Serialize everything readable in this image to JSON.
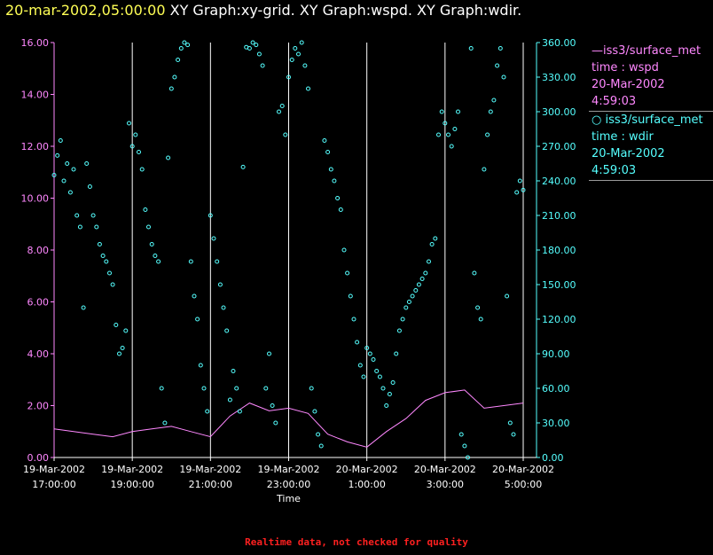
{
  "header": {
    "timestamp": "20-mar-2002,05:00:00",
    "graphs": "XY Graph:xy-grid.  XY Graph:wspd.  XY Graph:wdir."
  },
  "legend": {
    "wspd": {
      "source": "iss3/surface_met",
      "field": "time : wspd",
      "date": "20-Mar-2002",
      "time": "4:59:03"
    },
    "wdir": {
      "source": "iss3/surface_met",
      "field": "time : wdir",
      "date": "20-Mar-2002",
      "time": "4:59:03"
    }
  },
  "footer": {
    "note": "Realtime data, not checked for quality"
  },
  "colors": {
    "wspd": "#ff88ff",
    "wdir": "#55ffff",
    "grid": "#ffffff",
    "header_time": "#ffff55",
    "note": "#ff2020"
  },
  "chart_data": {
    "type": "scatter",
    "xlabel": "Time",
    "x_ticks": [
      {
        "date": "19-Mar-2002",
        "time": "17:00:00"
      },
      {
        "date": "19-Mar-2002",
        "time": "19:00:00"
      },
      {
        "date": "19-Mar-2002",
        "time": "21:00:00"
      },
      {
        "date": "19-Mar-2002",
        "time": "23:00:00"
      },
      {
        "date": "20-Mar-2002",
        "time": "1:00:00"
      },
      {
        "date": "20-Mar-2002",
        "time": "3:00:00"
      },
      {
        "date": "20-Mar-2002",
        "time": "5:00:00"
      }
    ],
    "xlim": [
      "19-Mar-2002 17:00",
      "20-Mar-2002 05:00"
    ],
    "grid": "vertical lines at each x tick",
    "y_left": {
      "label": "",
      "lim": [
        0,
        16
      ],
      "ticks": [
        "0.00",
        "2.00",
        "4.00",
        "6.00",
        "8.00",
        "10.00",
        "12.00",
        "14.00",
        "16.00"
      ]
    },
    "y_right": {
      "label": "",
      "lim": [
        0,
        360
      ],
      "ticks": [
        "0.00",
        "30.00",
        "60.00",
        "90.00",
        "120.00",
        "150.00",
        "180.00",
        "210.00",
        "240.00",
        "270.00",
        "300.00",
        "330.00",
        "360.00"
      ]
    },
    "series": [
      {
        "name": "iss3/surface_met time : wspd",
        "style": "line",
        "axis": "left",
        "color": "#ff88ff",
        "x": [
          "17:00",
          "17:30",
          "18:00",
          "18:30",
          "19:00",
          "19:30",
          "20:00",
          "20:30",
          "21:00",
          "21:30",
          "22:00",
          "22:30",
          "23:00",
          "23:30",
          "00:00",
          "00:30",
          "01:00",
          "01:30",
          "02:00",
          "02:30",
          "03:00",
          "03:30",
          "04:00",
          "04:30",
          "05:00"
        ],
        "values": [
          1.1,
          1.0,
          0.9,
          0.8,
          1.0,
          1.1,
          1.2,
          1.0,
          0.8,
          1.6,
          2.1,
          1.8,
          1.9,
          1.7,
          0.9,
          0.6,
          0.4,
          1.0,
          1.5,
          2.2,
          2.5,
          2.6,
          1.9,
          2.0,
          2.1
        ]
      },
      {
        "name": "iss3/surface_met time : wdir",
        "style": "markers",
        "axis": "right",
        "color": "#55ffff",
        "points": [
          [
            "17:00",
            245
          ],
          [
            "17:05",
            262
          ],
          [
            "17:10",
            275
          ],
          [
            "17:15",
            240
          ],
          [
            "17:20",
            255
          ],
          [
            "17:25",
            230
          ],
          [
            "17:30",
            250
          ],
          [
            "17:35",
            210
          ],
          [
            "17:40",
            200
          ],
          [
            "17:45",
            130
          ],
          [
            "17:50",
            255
          ],
          [
            "17:55",
            235
          ],
          [
            "18:00",
            210
          ],
          [
            "18:05",
            200
          ],
          [
            "18:10",
            185
          ],
          [
            "18:15",
            175
          ],
          [
            "18:20",
            170
          ],
          [
            "18:25",
            160
          ],
          [
            "18:30",
            150
          ],
          [
            "18:35",
            115
          ],
          [
            "18:40",
            90
          ],
          [
            "18:45",
            95
          ],
          [
            "18:50",
            110
          ],
          [
            "18:55",
            290
          ],
          [
            "19:00",
            270
          ],
          [
            "19:05",
            280
          ],
          [
            "19:10",
            265
          ],
          [
            "19:15",
            250
          ],
          [
            "19:20",
            215
          ],
          [
            "19:25",
            200
          ],
          [
            "19:30",
            185
          ],
          [
            "19:35",
            175
          ],
          [
            "19:40",
            170
          ],
          [
            "19:45",
            60
          ],
          [
            "19:50",
            30
          ],
          [
            "19:55",
            260
          ],
          [
            "20:00",
            320
          ],
          [
            "20:05",
            330
          ],
          [
            "20:10",
            345
          ],
          [
            "20:15",
            355
          ],
          [
            "20:20",
            360
          ],
          [
            "20:25",
            358
          ],
          [
            "20:30",
            170
          ],
          [
            "20:35",
            140
          ],
          [
            "20:40",
            120
          ],
          [
            "20:45",
            80
          ],
          [
            "20:50",
            60
          ],
          [
            "20:55",
            40
          ],
          [
            "21:00",
            210
          ],
          [
            "21:05",
            190
          ],
          [
            "21:10",
            170
          ],
          [
            "21:15",
            150
          ],
          [
            "21:20",
            130
          ],
          [
            "21:25",
            110
          ],
          [
            "21:30",
            50
          ],
          [
            "21:35",
            75
          ],
          [
            "21:40",
            60
          ],
          [
            "21:45",
            40
          ],
          [
            "21:50",
            252
          ],
          [
            "21:55",
            356
          ],
          [
            "22:00",
            355
          ],
          [
            "22:05",
            360
          ],
          [
            "22:10",
            358
          ],
          [
            "22:15",
            350
          ],
          [
            "22:20",
            340
          ],
          [
            "22:25",
            60
          ],
          [
            "22:30",
            90
          ],
          [
            "22:35",
            45
          ],
          [
            "22:40",
            30
          ],
          [
            "22:45",
            300
          ],
          [
            "22:50",
            305
          ],
          [
            "22:55",
            280
          ],
          [
            "23:00",
            330
          ],
          [
            "23:05",
            345
          ],
          [
            "23:10",
            355
          ],
          [
            "23:15",
            350
          ],
          [
            "23:20",
            360
          ],
          [
            "23:25",
            340
          ],
          [
            "23:30",
            320
          ],
          [
            "23:35",
            60
          ],
          [
            "23:40",
            40
          ],
          [
            "23:45",
            20
          ],
          [
            "23:50",
            10
          ],
          [
            "23:55",
            275
          ],
          [
            "00:00",
            265
          ],
          [
            "00:05",
            250
          ],
          [
            "00:10",
            240
          ],
          [
            "00:15",
            225
          ],
          [
            "00:20",
            215
          ],
          [
            "00:25",
            180
          ],
          [
            "00:30",
            160
          ],
          [
            "00:35",
            140
          ],
          [
            "00:40",
            120
          ],
          [
            "00:45",
            100
          ],
          [
            "00:50",
            80
          ],
          [
            "00:55",
            70
          ],
          [
            "01:00",
            95
          ],
          [
            "01:05",
            90
          ],
          [
            "01:10",
            85
          ],
          [
            "01:15",
            75
          ],
          [
            "01:20",
            70
          ],
          [
            "01:25",
            60
          ],
          [
            "01:30",
            45
          ],
          [
            "01:35",
            55
          ],
          [
            "01:40",
            65
          ],
          [
            "01:45",
            90
          ],
          [
            "01:50",
            110
          ],
          [
            "01:55",
            120
          ],
          [
            "02:00",
            130
          ],
          [
            "02:05",
            135
          ],
          [
            "02:10",
            140
          ],
          [
            "02:15",
            145
          ],
          [
            "02:20",
            150
          ],
          [
            "02:25",
            155
          ],
          [
            "02:30",
            160
          ],
          [
            "02:35",
            170
          ],
          [
            "02:40",
            185
          ],
          [
            "02:45",
            190
          ],
          [
            "02:50",
            280
          ],
          [
            "02:55",
            300
          ],
          [
            "03:00",
            290
          ],
          [
            "03:05",
            280
          ],
          [
            "03:10",
            270
          ],
          [
            "03:15",
            285
          ],
          [
            "03:20",
            300
          ],
          [
            "03:25",
            20
          ],
          [
            "03:30",
            10
          ],
          [
            "03:35",
            0
          ],
          [
            "03:40",
            355
          ],
          [
            "03:45",
            160
          ],
          [
            "03:50",
            130
          ],
          [
            "03:55",
            120
          ],
          [
            "04:00",
            250
          ],
          [
            "04:05",
            280
          ],
          [
            "04:10",
            300
          ],
          [
            "04:15",
            310
          ],
          [
            "04:20",
            340
          ],
          [
            "04:25",
            355
          ],
          [
            "04:30",
            330
          ],
          [
            "04:35",
            140
          ],
          [
            "04:40",
            30
          ],
          [
            "04:45",
            20
          ],
          [
            "04:50",
            230
          ],
          [
            "04:55",
            240
          ],
          [
            "05:00",
            232
          ]
        ]
      }
    ]
  }
}
